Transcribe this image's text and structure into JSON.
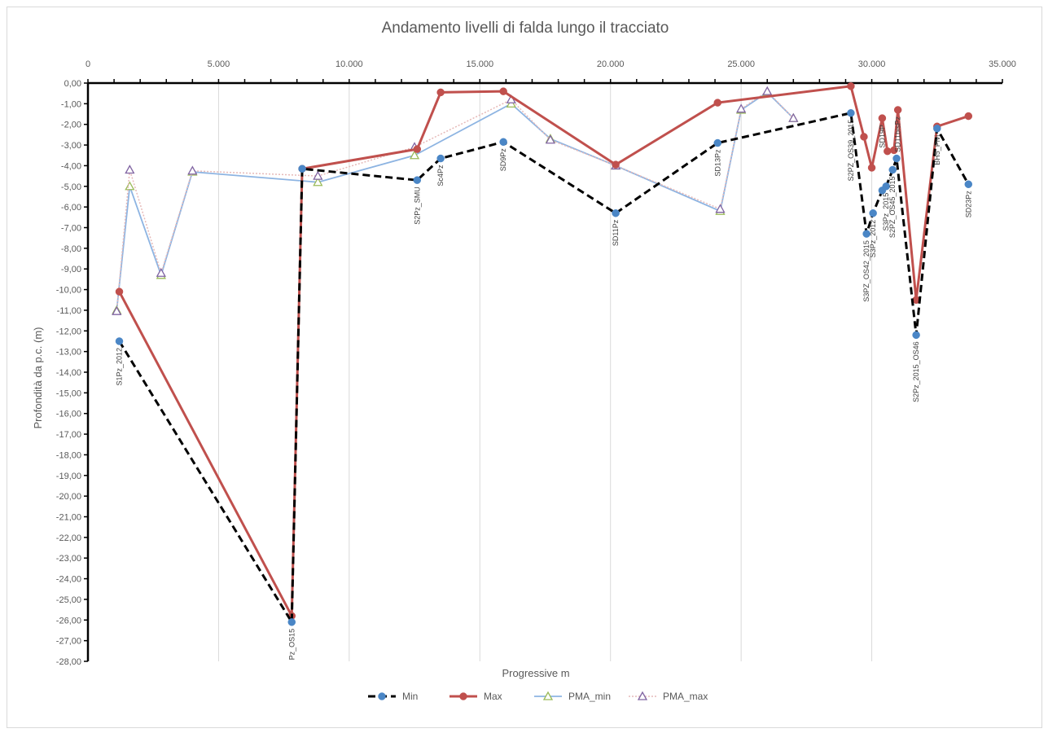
{
  "chart_data": {
    "type": "line",
    "title": "Andamento livelli di falda lungo il tracciato",
    "xlabel": "Progressive m",
    "ylabel": "Profondità da p.c. (m)",
    "xlim": [
      0,
      35000
    ],
    "ylim": [
      -28,
      0
    ],
    "x_ticks": [
      0,
      5000,
      10000,
      15000,
      20000,
      25000,
      30000,
      35000
    ],
    "x_tick_labels": [
      "0",
      "5.000",
      "10.000",
      "15.000",
      "20.000",
      "25.000",
      "30.000",
      "35.000"
    ],
    "y_ticks": [
      0,
      -1,
      -2,
      -3,
      -4,
      -5,
      -6,
      -7,
      -8,
      -9,
      -10,
      -11,
      -12,
      -13,
      -14,
      -15,
      -16,
      -17,
      -18,
      -19,
      -20,
      -21,
      -22,
      -23,
      -24,
      -25,
      -26,
      -27,
      -28
    ],
    "y_tick_labels": [
      "0,00",
      "-1,00",
      "-2,00",
      "-3,00",
      "-4,00",
      "-5,00",
      "-6,00",
      "-7,00",
      "-8,00",
      "-9,00",
      "-10,00",
      "-11,00",
      "-12,00",
      "-13,00",
      "-14,00",
      "-15,00",
      "-16,00",
      "-17,00",
      "-18,00",
      "-19,00",
      "-20,00",
      "-21,00",
      "-22,00",
      "-23,00",
      "-24,00",
      "-25,00",
      "-26,00",
      "-27,00",
      "-28,00"
    ],
    "grid": "vertical",
    "legend_position": "bottom",
    "series": [
      {
        "name": "Min",
        "color": "#000000",
        "style": "dashed",
        "marker": "circle",
        "marker_color": "#4a86c6",
        "points": [
          [
            1200,
            -12.5
          ],
          [
            7800,
            -26.1
          ],
          [
            8200,
            -4.15
          ],
          [
            12600,
            -4.7
          ],
          [
            13500,
            -3.65
          ],
          [
            15900,
            -2.85
          ],
          [
            20200,
            -6.3
          ],
          [
            24100,
            -2.9
          ],
          [
            29200,
            -1.45
          ],
          [
            29800,
            -7.3
          ],
          [
            30050,
            -6.3
          ],
          [
            30400,
            -5.2
          ],
          [
            30550,
            -5.0
          ],
          [
            30800,
            -4.2
          ],
          [
            30950,
            -3.65
          ],
          [
            31700,
            -12.2
          ],
          [
            32500,
            -2.2
          ],
          [
            33700,
            -4.9
          ]
        ]
      },
      {
        "name": "Max",
        "color": "#c0504d",
        "style": "solid",
        "marker": "circle",
        "marker_color": "#c0504d",
        "points": [
          [
            1200,
            -10.1
          ],
          [
            7800,
            -25.8
          ],
          [
            8200,
            -4.15
          ],
          [
            12600,
            -3.2
          ],
          [
            13500,
            -0.45
          ],
          [
            15900,
            -0.4
          ],
          [
            20200,
            -3.95
          ],
          [
            24100,
            -0.95
          ],
          [
            29200,
            -0.15
          ],
          [
            29700,
            -2.6
          ],
          [
            30000,
            -4.1
          ],
          [
            30400,
            -1.7
          ],
          [
            30600,
            -3.3
          ],
          [
            30850,
            -3.25
          ],
          [
            31000,
            -1.3
          ],
          [
            31700,
            -10.5
          ],
          [
            32500,
            -2.1
          ],
          [
            33700,
            -1.6
          ]
        ]
      },
      {
        "name": "PMA_min",
        "color": "#8db4e2",
        "style": "solid",
        "marker": "triangle",
        "marker_color": "#9bbb59",
        "points": [
          [
            1100,
            -11.0
          ],
          [
            1600,
            -5.0
          ],
          [
            2800,
            -9.3
          ],
          [
            4000,
            -4.3
          ],
          [
            8800,
            -4.8
          ],
          [
            12500,
            -3.5
          ],
          [
            16200,
            -1.0
          ],
          [
            17700,
            -2.7
          ],
          [
            20200,
            -4.0
          ],
          [
            24200,
            -6.2
          ],
          [
            25000,
            -1.3
          ],
          [
            26000,
            -0.45
          ],
          [
            27000,
            -1.7
          ]
        ]
      },
      {
        "name": "PMA_max",
        "color": "#e6b9b8",
        "style": "dotted",
        "marker": "triangle",
        "marker_color": "#8064a2",
        "points": [
          [
            1100,
            -11.05
          ],
          [
            1600,
            -4.2
          ],
          [
            2800,
            -9.2
          ],
          [
            4000,
            -4.25
          ],
          [
            8800,
            -4.5
          ],
          [
            12500,
            -3.1
          ],
          [
            16200,
            -0.8
          ],
          [
            17700,
            -2.75
          ],
          [
            20200,
            -4.0
          ],
          [
            24200,
            -6.1
          ],
          [
            25000,
            -1.25
          ],
          [
            26000,
            -0.4
          ],
          [
            27000,
            -1.7
          ]
        ]
      }
    ],
    "annotations": [
      {
        "text": "S1Pz_2012",
        "x": 1200,
        "y": -12.5
      },
      {
        "text": "Pz_OS15",
        "x": 7800,
        "y": -26.1
      },
      {
        "text": "S2Pz_SMU",
        "x": 12600,
        "y": -4.7
      },
      {
        "text": "Sc4Pz",
        "x": 13500,
        "y": -3.65
      },
      {
        "text": "SD9Pz",
        "x": 15900,
        "y": -2.85
      },
      {
        "text": "SD11Pz",
        "x": 20200,
        "y": -6.3
      },
      {
        "text": "SD13Pz",
        "x": 24100,
        "y": -2.9
      },
      {
        "text": "S2PZ_OS39_2015",
        "x": 29200,
        "y": -1.45
      },
      {
        "text": "S3PZ_OS42_2015",
        "x": 29800,
        "y": -7.3
      },
      {
        "text": "S3Pz_2012",
        "x": 30050,
        "y": -6.3
      },
      {
        "text": "SD19P",
        "x": 30400,
        "y": -1.7
      },
      {
        "text": "S3Pz_2015",
        "x": 30550,
        "y": -5.0
      },
      {
        "text": "S2PZ_OS45_2015",
        "x": 30800,
        "y": -4.2
      },
      {
        "text": "SD11bisPz",
        "x": 31000,
        "y": -1.3
      },
      {
        "text": "S2Pz_2015_OS46",
        "x": 31700,
        "y": -12.2
      },
      {
        "text": "BH5_Pivi",
        "x": 32500,
        "y": -2.2
      },
      {
        "text": "SD23Pz",
        "x": 33700,
        "y": -4.9
      }
    ]
  }
}
